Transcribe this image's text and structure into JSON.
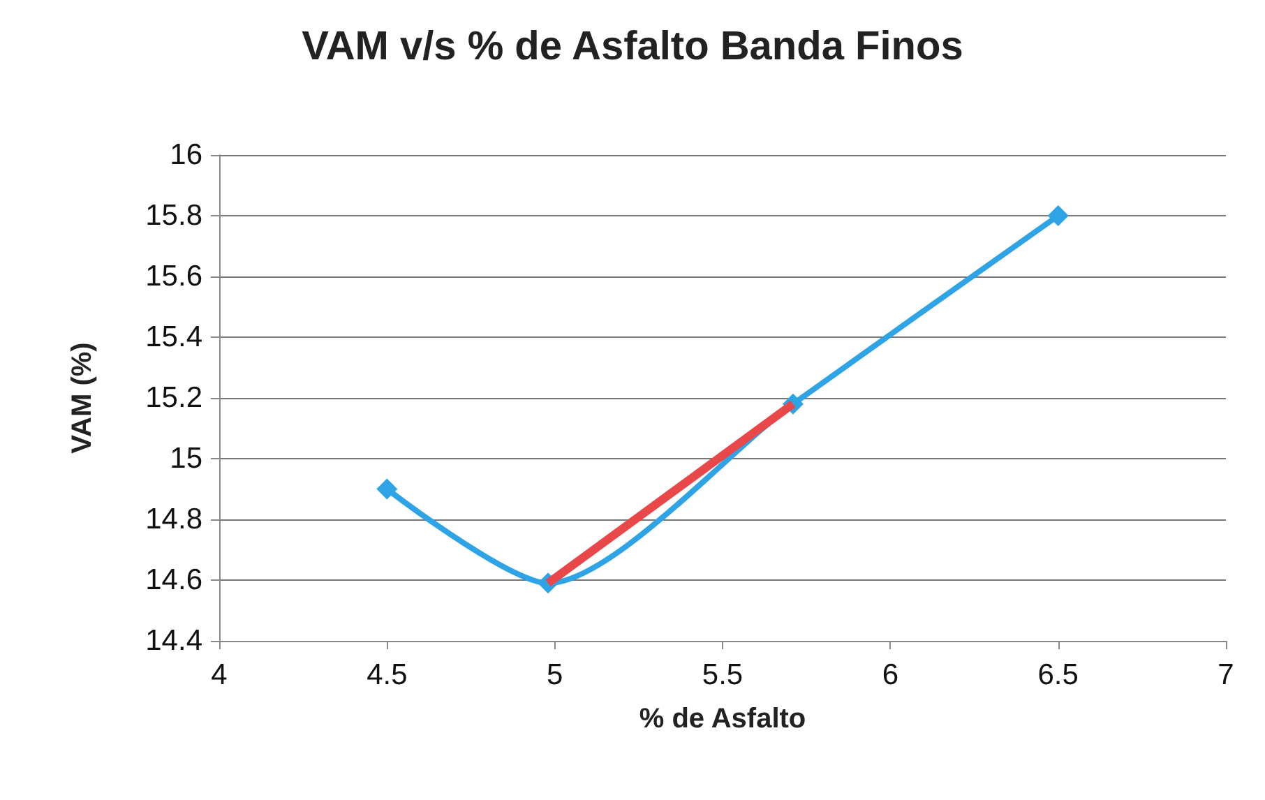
{
  "chart_data": {
    "type": "line",
    "title": "VAM v/s % de Asfalto Banda Finos",
    "xlabel": "% de Asfalto",
    "ylabel": "VAM (%)",
    "series": [
      {
        "color": "#2ea3e6",
        "x": [
          4.5,
          4.98,
          5.71,
          6.5
        ],
        "values": [
          14.9,
          14.59,
          15.18,
          15.8
        ],
        "marker": "diamond"
      },
      {
        "color": "#e8484a",
        "x": [
          4.98,
          5.71
        ],
        "values": [
          14.59,
          15.18
        ],
        "marker": "none"
      }
    ],
    "xlim": [
      4,
      7
    ],
    "xticks": [
      4,
      4.5,
      5,
      5.5,
      6,
      6.5,
      7
    ],
    "ylim": [
      14.4,
      16
    ],
    "yticks": [
      14.4,
      14.6,
      14.8,
      15,
      15.2,
      15.4,
      15.6,
      15.8,
      16
    ],
    "grid": "y"
  }
}
